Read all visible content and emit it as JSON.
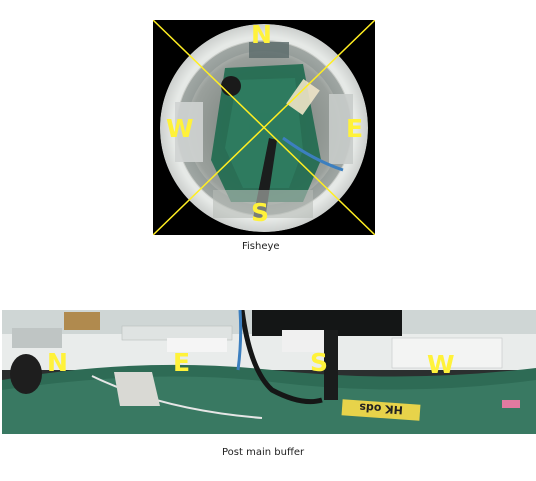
{
  "fisheye": {
    "caption": "Fisheye",
    "directions": {
      "north": "N",
      "east": "E",
      "south": "S",
      "west": "W"
    },
    "line_color": "#ffee22"
  },
  "panorama": {
    "caption": "Post main buffer",
    "directions": {
      "north": "N",
      "east": "E",
      "south": "S",
      "west": "W"
    },
    "floor_text": "HK ods",
    "label_color": "#fff23a"
  }
}
